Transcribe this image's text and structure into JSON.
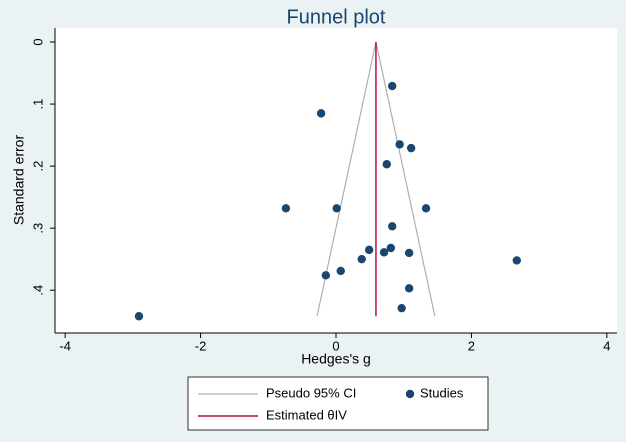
{
  "chart_data": {
    "type": "funnel",
    "title": "Funnel plot",
    "x_label": "Hedges's g",
    "y_label": "Standard error",
    "xlim": [
      -4.15,
      4.15
    ],
    "xticks": [
      -4,
      -2,
      0,
      2,
      4
    ],
    "ylim": [
      -0.0226,
      0.469
    ],
    "yticks": [
      0,
      {
        "value": 0.1,
        "label": ".1"
      },
      {
        "value": 0.2,
        "label": ".2"
      },
      {
        "value": 0.3,
        "label": ".3"
      },
      {
        "value": 0.4,
        "label": ".4"
      }
    ],
    "y_reversed": true,
    "series": [
      {
        "name": "Studies",
        "color": "#1a476f",
        "x": [
          0.83,
          -0.22,
          0.94,
          1.11,
          0.75,
          -0.74,
          0.01,
          1.33,
          0.83,
          0.49,
          0.81,
          0.71,
          1.08,
          0.38,
          2.67,
          0.07,
          -0.15,
          1.08,
          0.97,
          -2.91
        ],
        "values": [
          0.071,
          0.115,
          0.165,
          0.171,
          0.197,
          0.268,
          0.268,
          0.268,
          0.297,
          0.335,
          0.332,
          0.339,
          0.34,
          0.35,
          0.352,
          0.369,
          0.376,
          0.397,
          0.429,
          0.442
        ]
      }
    ],
    "pseudo_ci": {
      "name": "Pseudo 95% CI",
      "color": "#b0b0b0",
      "x": [
        -0.28,
        0.59,
        1.46
      ],
      "values": [
        0.442,
        0,
        0.442
      ]
    },
    "estimate": {
      "name": "Estimated θIV",
      "color": "#b5163a",
      "value": 0.59,
      "se_range": [
        0,
        0.442
      ]
    }
  }
}
